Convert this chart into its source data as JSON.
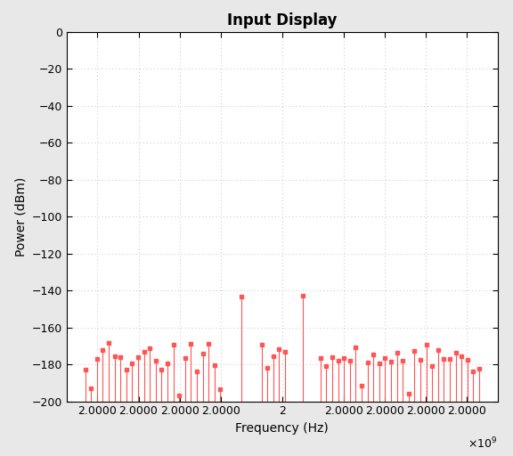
{
  "title": "Input Display",
  "xlabel": "Frequency (Hz)",
  "ylabel": "Power (dBm)",
  "xlim": [
    1947500000.0,
    2052500000.0
  ],
  "ylim": [
    -200,
    0
  ],
  "yticks": [
    0,
    -20,
    -40,
    -60,
    -80,
    -100,
    -120,
    -140,
    -160,
    -180,
    -200
  ],
  "xtick_values": [
    1955000000.0,
    1965000000.0,
    1975000000.0,
    1985000000.0,
    2000000000.0,
    2015000000.0,
    2025000000.0,
    2035000000.0,
    2045000000.0
  ],
  "xtick_labels": [
    "2.0000",
    "2.0000",
    "2.0000",
    "2.0000",
    "2",
    "2.0000",
    "2.0000",
    "2.0000",
    "2.0000"
  ],
  "line_color": "#FF5555",
  "marker_color": "#FF5555",
  "plot_bg": "#FFFFFF",
  "figure_bg": "#E8E8E8",
  "title_fontsize": 12,
  "axis_fontsize": 10,
  "tick_fontsize": 9,
  "grid_color": "#C0C0C0",
  "grid_style": "dotted",
  "main_freqs": [
    1990000000.0,
    2005000000.0
  ],
  "main_powers": [
    -143.5,
    -143.0
  ],
  "noise_seed": 7,
  "n_noise": 68,
  "noise_freq_min": 1952000000.0,
  "noise_freq_max": 2048000000.0,
  "noise_power_base_min": -184,
  "noise_power_base_max": -168,
  "deep_spike_power_min": -197,
  "deep_spike_power_max": -191,
  "n_deep": 5,
  "deep_seed": 7
}
